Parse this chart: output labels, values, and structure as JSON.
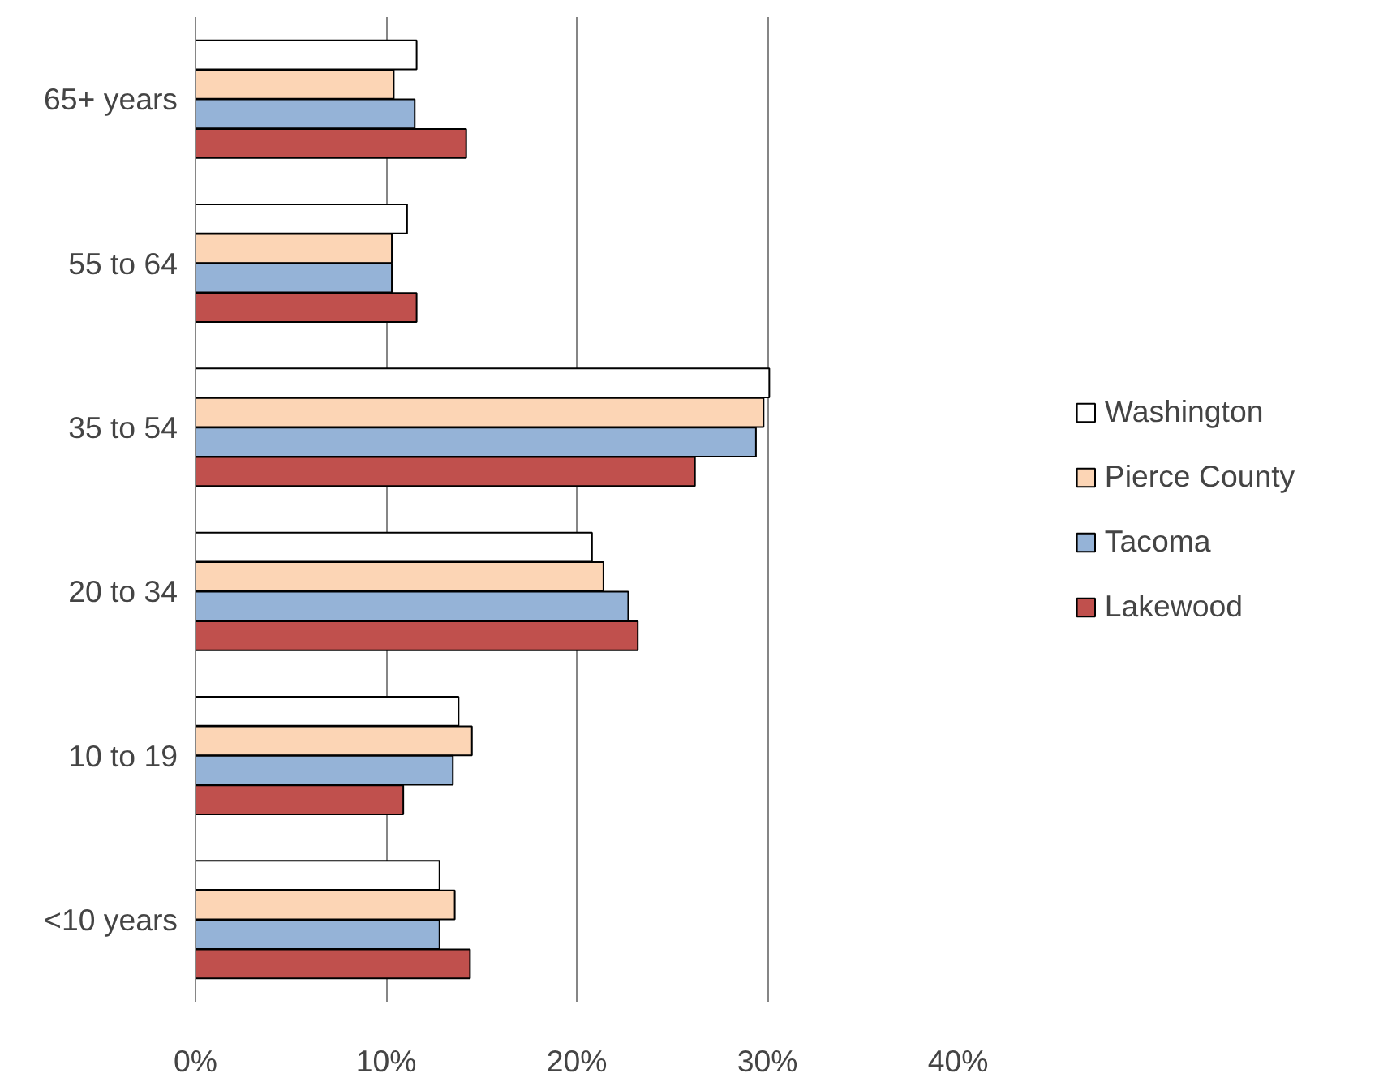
{
  "chart_data": {
    "type": "bar",
    "orientation": "horizontal",
    "categories": [
      "65+ years",
      "55 to 64",
      "35 to 54",
      "20 to 34",
      "10 to 19",
      "<10 years"
    ],
    "series": [
      {
        "name": "Washington",
        "color": "#ffffff",
        "values": [
          11.6,
          11.1,
          30.1,
          20.8,
          13.8,
          12.8
        ]
      },
      {
        "name": "Pierce County",
        "color": "#fcd5b5",
        "values": [
          10.4,
          10.3,
          29.8,
          21.4,
          14.5,
          13.6
        ]
      },
      {
        "name": "Tacoma",
        "color": "#95b3d7",
        "values": [
          11.5,
          10.3,
          29.4,
          22.7,
          13.5,
          12.8
        ]
      },
      {
        "name": "Lakewood",
        "color": "#c0504d",
        "values": [
          14.2,
          11.6,
          26.2,
          23.2,
          10.9,
          14.4
        ]
      }
    ],
    "xlim": [
      0,
      40
    ],
    "xticks": [
      {
        "value": 0,
        "label": "0%"
      },
      {
        "value": 10,
        "label": "10%"
      },
      {
        "value": 20,
        "label": "20%"
      },
      {
        "value": 30,
        "label": "30%"
      },
      {
        "value": 40,
        "label": "40%"
      }
    ],
    "grid": "x",
    "legend": "right"
  }
}
